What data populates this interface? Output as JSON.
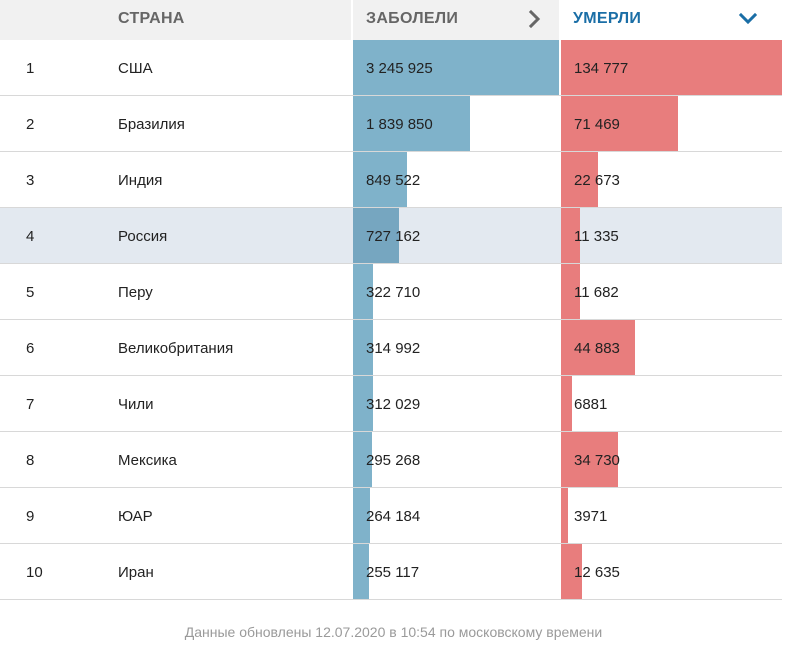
{
  "header": {
    "country_label": "СТРАНА",
    "cases_label": "ЗАБОЛЕЛИ",
    "deaths_label": "УМЕРЛИ",
    "cases_icon": "chevron-right-icon",
    "deaths_icon": "chevron-down-icon",
    "header_color": "#666666",
    "active_color": "#1a6ea6"
  },
  "colors": {
    "cases_bar": "#7fb2ca",
    "deaths_bar": "#e87d7d",
    "highlight_row": "#e3e9f0"
  },
  "rows": [
    {
      "rank": "1",
      "country": "США",
      "cases": "3 245 925",
      "deaths": "134 777",
      "cases_value": 3245925,
      "deaths_value": 134777
    },
    {
      "rank": "2",
      "country": "Бразилия",
      "cases": "1 839 850",
      "deaths": "71 469",
      "cases_value": 1839850,
      "deaths_value": 71469
    },
    {
      "rank": "3",
      "country": "Индия",
      "cases": "849 522",
      "deaths": "22 673",
      "cases_value": 849522,
      "deaths_value": 22673
    },
    {
      "rank": "4",
      "country": "Россия",
      "cases": "727 162",
      "deaths": "11 335",
      "cases_value": 727162,
      "deaths_value": 11335,
      "highlighted": true
    },
    {
      "rank": "5",
      "country": "Перу",
      "cases": "322 710",
      "deaths": "11 682",
      "cases_value": 322710,
      "deaths_value": 11682
    },
    {
      "rank": "6",
      "country": "Великобритания",
      "cases": "314 992",
      "deaths": "44 883",
      "cases_value": 314992,
      "deaths_value": 44883
    },
    {
      "rank": "7",
      "country": "Чили",
      "cases": "312 029",
      "deaths": "6881",
      "cases_value": 312029,
      "deaths_value": 6881
    },
    {
      "rank": "8",
      "country": "Мексика",
      "cases": "295 268",
      "deaths": "34 730",
      "cases_value": 295268,
      "deaths_value": 34730
    },
    {
      "rank": "9",
      "country": "ЮАР",
      "cases": "264 184",
      "deaths": "3971",
      "cases_value": 264184,
      "deaths_value": 3971
    },
    {
      "rank": "10",
      "country": "Иран",
      "cases": "255 117",
      "deaths": "12 635",
      "cases_value": 255117,
      "deaths_value": 12635
    }
  ],
  "footer": {
    "updated_text": "Данные обновлены 12.07.2020 в 10:54 по московскому времени"
  }
}
